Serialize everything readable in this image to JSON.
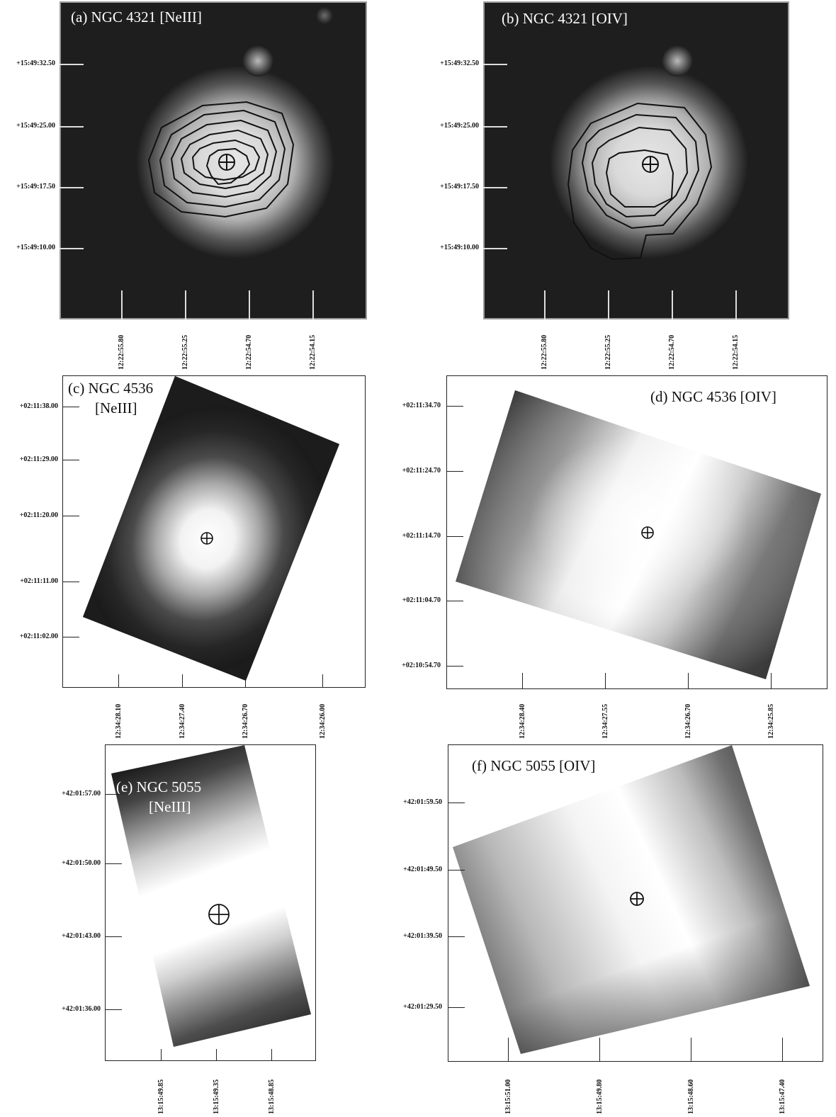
{
  "panels": [
    {
      "id": "a",
      "title": "(a) NGC 4321 [NeIII]",
      "yticks": [
        "+15:49:32.50",
        "+15:49:25.00",
        "+15:49:17.50",
        "+15:49:10.00"
      ],
      "xticks": [
        "12:22:55.80",
        "12:22:55.25",
        "12:22:54.70",
        "12:22:54.15"
      ]
    },
    {
      "id": "b",
      "title": "(b) NGC 4321 [OIV]",
      "yticks": [
        "+15:49:32.50",
        "+15:49:25.00",
        "+15:49:17.50",
        "+15:49:10.00"
      ],
      "xticks": [
        "12:22:55.80",
        "12:22:55.25",
        "12:22:54.70",
        "12:22:54.15"
      ]
    },
    {
      "id": "c",
      "title_line1": "(c) NGC 4536",
      "title_line2": "[NeIII]",
      "yticks": [
        "+02:11:38.00",
        "+02:11:29.00",
        "+02:11:20.00",
        "+02:11:11.00",
        "+02:11:02.00"
      ],
      "xticks": [
        "12:34:28.10",
        "12:34:27.40",
        "12:34:26.70",
        "12:34:26.00"
      ]
    },
    {
      "id": "d",
      "title": "(d) NGC 4536 [OIV]",
      "yticks": [
        "+02:11:34.70",
        "+02:11:24.70",
        "+02:11:14.70",
        "+02:11:04.70",
        "+02:10:54.70"
      ],
      "xticks": [
        "12:34:28.40",
        "12:34:27.55",
        "12:34:26.70",
        "12:34:25.85"
      ]
    },
    {
      "id": "e",
      "title_line1": "(e) NGC 5055",
      "title_line2": "[NeIII]",
      "yticks": [
        "+42:01:57.00",
        "+42:01:50.00",
        "+42:01:43.00",
        "+42:01:36.00"
      ],
      "xticks": [
        "13:15:49.85",
        "13:15:49.35",
        "13:15:48.85"
      ]
    },
    {
      "id": "f",
      "title": "(f) NGC 5055 [OIV]",
      "yticks": [
        "+42:01:59.50",
        "+42:01:49.50",
        "+42:01:39.50",
        "+42:01:29.50"
      ],
      "xticks": [
        "13:15:51.00",
        "13:15:49.80",
        "13:15:48.60",
        "13:15:47.40"
      ]
    }
  ],
  "marker_icon": "circle-cross-icon"
}
